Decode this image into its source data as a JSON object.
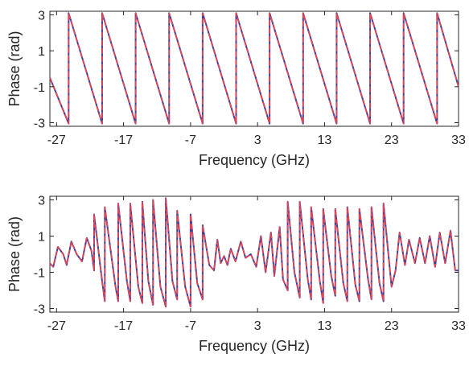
{
  "chart_data": [
    {
      "type": "line",
      "title": "",
      "xlabel": "Frequency (GHz)",
      "ylabel": "Phase (rad)",
      "xlim": [
        -28,
        33
      ],
      "ylim": [
        -3.2,
        3.2
      ],
      "xticks": [
        -27,
        -17,
        -7,
        3,
        13,
        23,
        33
      ],
      "xtick_labels": [
        "-27",
        "-17",
        "-7",
        "3",
        "13",
        "23",
        "33"
      ],
      "yticks": [
        3,
        1,
        -1,
        -3
      ],
      "ytick_labels": [
        "3",
        "1",
        "-1",
        "-3"
      ],
      "grid": false,
      "legend": "none",
      "series": [
        {
          "color": "#3a3fa0",
          "style": "solid",
          "x": [
            -28,
            -25.2,
            -25.2,
            -20.2,
            -20.2,
            -15.2,
            -15.2,
            -10.2,
            -10.2,
            -5.2,
            -5.2,
            -0.2,
            -0.2,
            4.8,
            4.8,
            9.8,
            9.8,
            14.8,
            14.8,
            19.8,
            19.8,
            24.8,
            24.8,
            29.8,
            29.8,
            33
          ],
          "y": [
            -0.5,
            -3.05,
            3.1,
            -3.05,
            3.1,
            -3.05,
            3.1,
            -3.05,
            3.1,
            -3.05,
            3.1,
            -3.05,
            3.1,
            -3.05,
            3.1,
            -3.05,
            3.1,
            -3.05,
            3.1,
            -3.05,
            3.1,
            -3.05,
            3.1,
            -3.05,
            3.1,
            -1.0
          ]
        },
        {
          "color": "#e8454f",
          "style": "dashed",
          "x": [
            -28,
            -25.2,
            -25.2,
            -20.2,
            -20.2,
            -15.2,
            -15.2,
            -10.2,
            -10.2,
            -5.2,
            -5.2,
            -0.2,
            -0.2,
            4.8,
            4.8,
            9.8,
            9.8,
            14.8,
            14.8,
            19.8,
            19.8,
            24.8,
            24.8,
            29.8,
            29.8,
            33
          ],
          "y": [
            -0.5,
            -3.05,
            3.1,
            -3.05,
            3.1,
            -3.05,
            3.1,
            -3.05,
            3.1,
            -3.05,
            3.1,
            -3.05,
            3.1,
            -3.05,
            3.1,
            -3.05,
            3.1,
            -3.05,
            3.1,
            -3.05,
            3.1,
            -3.05,
            3.1,
            -3.05,
            3.1,
            -1.0
          ]
        }
      ]
    },
    {
      "type": "line",
      "title": "",
      "xlabel": "Frequency (GHz)",
      "ylabel": "Phase (rad)",
      "xlim": [
        -28,
        33
      ],
      "ylim": [
        -3.2,
        3.2
      ],
      "xticks": [
        -27,
        -17,
        -7,
        3,
        13,
        23,
        33
      ],
      "xtick_labels": [
        "-27",
        "-17",
        "-7",
        "3",
        "13",
        "23",
        "33"
      ],
      "yticks": [
        3,
        1,
        -1,
        -3
      ],
      "ytick_labels": [
        "3",
        "1",
        "-1",
        "-3"
      ],
      "grid": false,
      "legend": "none",
      "series": [
        {
          "color": "#3a3fa0",
          "style": "solid",
          "x": [
            -28,
            -27.5,
            -26.8,
            -26,
            -25.5,
            -24.8,
            -24,
            -23.2,
            -22.5,
            -21.8,
            -21.4,
            -21.4,
            -20.2,
            -19.8,
            -19.8,
            -18.2,
            -17.8,
            -17.8,
            -16.5,
            -16.0,
            -16.0,
            -14.8,
            -14.2,
            -14.2,
            -13.3,
            -12.6,
            -12.6,
            -11.5,
            -10.7,
            -10.7,
            -9.7,
            -9.0,
            -9.0,
            -7.8,
            -7.0,
            -7.0,
            -6.0,
            -5.2,
            -5.2,
            -4.2,
            -3.5,
            -3.0,
            -2.5,
            -2.0,
            -1.5,
            -1.0,
            -0.3,
            0.5,
            1.2,
            2.0,
            2.8,
            3.5,
            4.2,
            5.0,
            5.5,
            6.3,
            6.8,
            7.5,
            7.5,
            8.5,
            9.3,
            9.3,
            10.5,
            11.0,
            11.0,
            12.3,
            12.8,
            12.8,
            14.0,
            14.6,
            14.6,
            15.8,
            16.4,
            16.4,
            17.6,
            18.2,
            18.2,
            19.5,
            20.0,
            20.0,
            21.2,
            21.8,
            21.8,
            23.0,
            23.6,
            24.2,
            25.0,
            25.6,
            26.5,
            27.2,
            28.0,
            28.7,
            29.5,
            30.2,
            31.0,
            31.8,
            32.5,
            33
          ],
          "y": [
            -0.5,
            -0.7,
            0.4,
            0.0,
            -0.6,
            0.7,
            0.0,
            -0.4,
            0.9,
            0.2,
            -0.9,
            2.2,
            -1.5,
            -2.6,
            2.6,
            -1.8,
            -2.6,
            2.8,
            -1.5,
            -2.6,
            2.8,
            -1.8,
            -2.7,
            2.9,
            -1.5,
            -2.8,
            3.0,
            -1.8,
            -2.9,
            3.1,
            -1.5,
            -2.5,
            2.4,
            -1.8,
            -2.9,
            2.2,
            -1.6,
            -2.5,
            1.6,
            -0.6,
            -0.9,
            0.8,
            -0.5,
            -0.1,
            -0.6,
            0.3,
            -0.4,
            0.7,
            -0.2,
            0.0,
            -0.7,
            1.0,
            -1.0,
            1.2,
            -1.2,
            1.5,
            -1.4,
            -2.0,
            2.9,
            -1.0,
            -2.4,
            2.9,
            -1.4,
            -2.5,
            2.6,
            -1.5,
            -2.7,
            2.5,
            -1.2,
            -2.3,
            2.5,
            -1.6,
            -2.6,
            2.6,
            -1.7,
            -2.6,
            2.5,
            -1.4,
            -2.5,
            2.6,
            -1.6,
            -2.6,
            2.8,
            -1.8,
            -0.9,
            1.2,
            -0.6,
            0.8,
            -0.5,
            0.9,
            -0.5,
            1.0,
            -0.7,
            1.2,
            -0.5,
            1.3,
            -0.9,
            -0.9
          ]
        },
        {
          "color": "#e8454f",
          "style": "dashed",
          "x": [
            -28,
            -27.5,
            -26.8,
            -26,
            -25.5,
            -24.8,
            -24,
            -23.2,
            -22.5,
            -21.8,
            -21.4,
            -21.4,
            -20.2,
            -19.8,
            -19.8,
            -18.2,
            -17.8,
            -17.8,
            -16.5,
            -16.0,
            -16.0,
            -14.8,
            -14.2,
            -14.2,
            -13.3,
            -12.6,
            -12.6,
            -11.5,
            -10.7,
            -10.7,
            -9.7,
            -9.0,
            -9.0,
            -7.8,
            -7.0,
            -7.0,
            -6.0,
            -5.2,
            -5.2,
            -4.2,
            -3.5,
            -3.0,
            -2.5,
            -2.0,
            -1.5,
            -1.0,
            -0.3,
            0.5,
            1.2,
            2.0,
            2.8,
            3.5,
            4.2,
            5.0,
            5.5,
            6.3,
            6.8,
            7.5,
            7.5,
            8.5,
            9.3,
            9.3,
            10.5,
            11.0,
            11.0,
            12.3,
            12.8,
            12.8,
            14.0,
            14.6,
            14.6,
            15.8,
            16.4,
            16.4,
            17.6,
            18.2,
            18.2,
            19.5,
            20.0,
            20.0,
            21.2,
            21.8,
            21.8,
            23.0,
            23.6,
            24.2,
            25.0,
            25.6,
            26.5,
            27.2,
            28.0,
            28.7,
            29.5,
            30.2,
            31.0,
            31.8,
            32.5,
            33
          ],
          "y": [
            -0.5,
            -0.7,
            0.4,
            0.0,
            -0.6,
            0.7,
            0.0,
            -0.4,
            0.9,
            0.2,
            -0.9,
            2.2,
            -1.5,
            -2.6,
            2.6,
            -1.8,
            -2.6,
            2.8,
            -1.5,
            -2.6,
            2.8,
            -1.8,
            -2.7,
            2.9,
            -1.5,
            -2.8,
            3.0,
            -1.8,
            -2.9,
            3.1,
            -1.5,
            -2.5,
            2.4,
            -1.8,
            -2.9,
            2.2,
            -1.6,
            -2.5,
            1.6,
            -0.6,
            -0.9,
            0.8,
            -0.5,
            -0.1,
            -0.6,
            0.3,
            -0.4,
            0.7,
            -0.2,
            0.0,
            -0.7,
            1.0,
            -1.0,
            1.2,
            -1.2,
            1.5,
            -1.4,
            -2.0,
            2.9,
            -1.0,
            -2.4,
            2.9,
            -1.4,
            -2.5,
            2.6,
            -1.5,
            -2.7,
            2.5,
            -1.2,
            -2.3,
            2.5,
            -1.6,
            -2.6,
            2.6,
            -1.7,
            -2.6,
            2.5,
            -1.4,
            -2.5,
            2.6,
            -1.6,
            -2.6,
            2.8,
            -1.8,
            -0.9,
            1.2,
            -0.6,
            0.8,
            -0.5,
            0.9,
            -0.5,
            1.0,
            -0.7,
            1.2,
            -0.5,
            1.3,
            -0.9,
            -0.9
          ]
        }
      ]
    }
  ]
}
